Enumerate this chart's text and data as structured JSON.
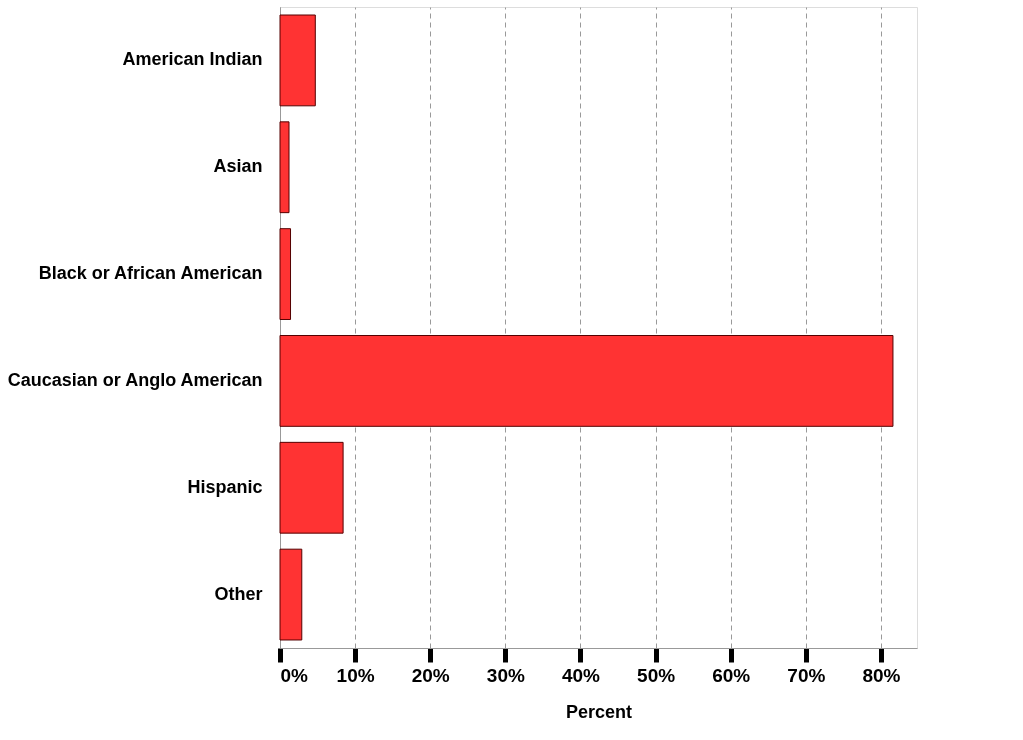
{
  "chart_data": {
    "type": "bar",
    "orientation": "horizontal",
    "xlabel": "Percent",
    "categories": [
      "American Indian",
      "Asian",
      "Black or African American",
      "Caucasian or Anglo American",
      "Hispanic",
      "Other"
    ],
    "values": [
      4.7,
      1.2,
      1.4,
      81.6,
      8.4,
      2.9
    ],
    "color": "#ff3333",
    "xlim": [
      0,
      84.8
    ],
    "xticks": [
      {
        "value": 0,
        "label": "0%"
      },
      {
        "value": 10,
        "label": "10%"
      },
      {
        "value": 20,
        "label": "20%"
      },
      {
        "value": 30,
        "label": "30%"
      },
      {
        "value": 40,
        "label": "40%"
      },
      {
        "value": 50,
        "label": "50%"
      },
      {
        "value": 60,
        "label": "60%"
      },
      {
        "value": 70,
        "label": "70%"
      },
      {
        "value": 80,
        "label": "80%"
      }
    ],
    "grid": "x"
  }
}
